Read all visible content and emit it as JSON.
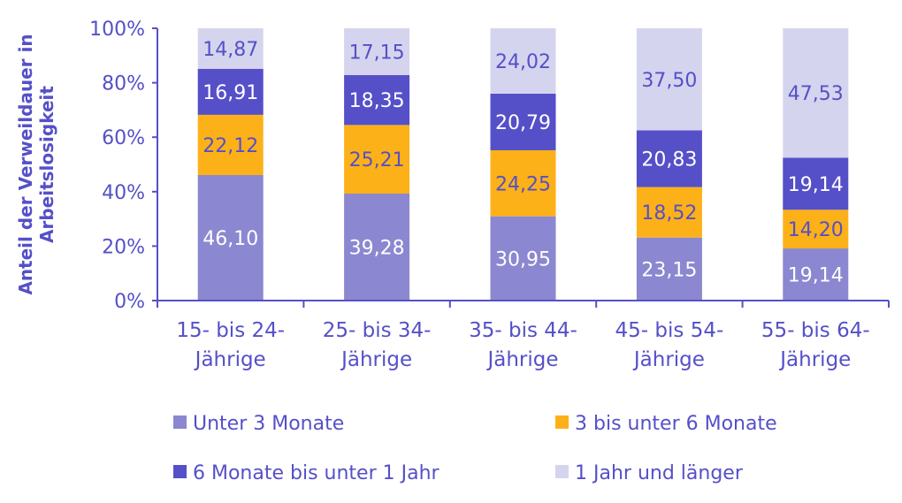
{
  "chart_data": {
    "type": "bar",
    "stacked": true,
    "ylabel": "Anteil der Verweildauer in Arbeitslosigkeit",
    "ylabel_lines": [
      "Anteil der Verweildauer in",
      "Arbeitslosigkeit"
    ],
    "ylim": [
      0,
      100
    ],
    "yticks": [
      "0%",
      "20%",
      "40%",
      "60%",
      "80%",
      "100%"
    ],
    "categories": [
      "15- bis 24-Jährige",
      "25- bis 34-Jährige",
      "35- bis 44-Jährige",
      "45- bis 54-Jährige",
      "55- bis 64-Jährige"
    ],
    "category_lines": [
      [
        "15- bis 24-",
        "Jährige"
      ],
      [
        "25- bis 34-",
        "Jährige"
      ],
      [
        "35- bis 44-",
        "Jährige"
      ],
      [
        "45- bis 54-",
        "Jährige"
      ],
      [
        "55- bis 64-",
        "Jährige"
      ]
    ],
    "series": [
      {
        "name": "Unter 3 Monate",
        "color": "#8b87d0",
        "label_color": "#ffffff",
        "values": [
          46.1,
          39.28,
          30.95,
          23.15,
          19.14
        ],
        "labels": [
          "46,10",
          "39,28",
          "30,95",
          "23,15",
          "19,14"
        ]
      },
      {
        "name": "3 bis unter 6 Monate",
        "color": "#fdb118",
        "label_color": "#5550c8",
        "values": [
          22.12,
          25.21,
          24.25,
          18.52,
          14.2
        ],
        "labels": [
          "22,12",
          "25,21",
          "24,25",
          "18,52",
          "14,20"
        ]
      },
      {
        "name": "6 Monate bis unter 1 Jahr",
        "color": "#5550c8",
        "label_color": "#ffffff",
        "values": [
          16.91,
          18.35,
          20.79,
          20.83,
          19.14
        ],
        "labels": [
          "16,91",
          "18,35",
          "20,79",
          "20,83",
          "19,14"
        ]
      },
      {
        "name": "1 Jahr und länger",
        "color": "#d5d4ee",
        "label_color": "#5550c8",
        "values": [
          14.87,
          17.15,
          24.02,
          37.5,
          47.53
        ],
        "labels": [
          "14,87",
          "17,15",
          "24,02",
          "37,50",
          "47,53"
        ]
      }
    ],
    "legend_placement": "bottom",
    "grid": false,
    "axis_color": "#5550c8"
  }
}
